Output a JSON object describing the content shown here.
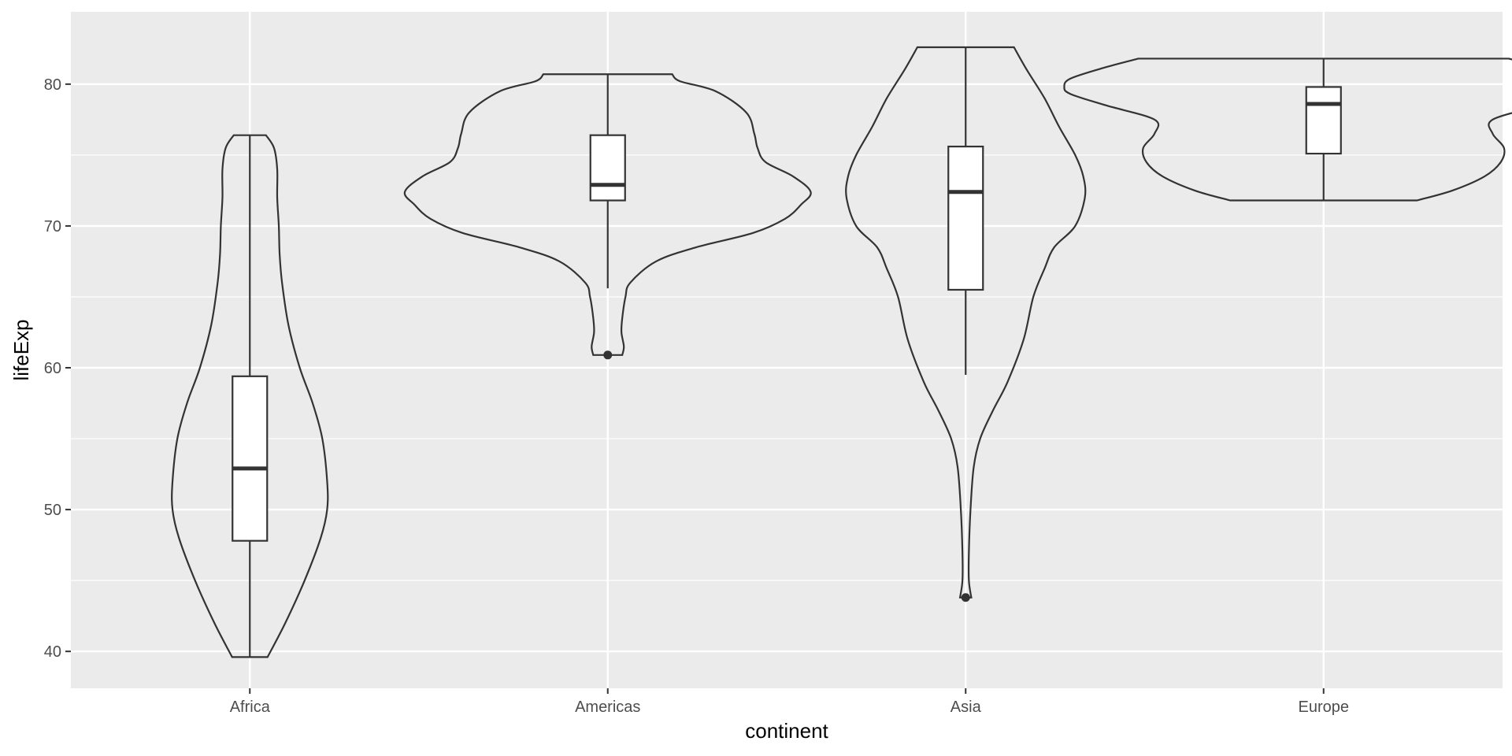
{
  "chart_data": {
    "type": "violin",
    "title": "",
    "xlabel": "continent",
    "ylabel": "lifeExp",
    "ylim": [
      37.4,
      85.1
    ],
    "yticks": [
      40,
      50,
      60,
      70,
      80
    ],
    "grid": true,
    "categories": [
      "Africa",
      "Americas",
      "Asia",
      "Europe"
    ],
    "series": [
      {
        "category": "Africa",
        "min": 39.6,
        "q1": 47.8,
        "median": 52.9,
        "q3": 59.4,
        "max": 76.4,
        "whisker_low": 39.6,
        "whisker_high": 76.4,
        "outliers": [],
        "density": [
          [
            39.6,
            0.11
          ],
          [
            42,
            0.22
          ],
          [
            45,
            0.34
          ],
          [
            48,
            0.44
          ],
          [
            50,
            0.48
          ],
          [
            52,
            0.48
          ],
          [
            55,
            0.45
          ],
          [
            57.5,
            0.39
          ],
          [
            60,
            0.31
          ],
          [
            63,
            0.24
          ],
          [
            66,
            0.2
          ],
          [
            68,
            0.185
          ],
          [
            70,
            0.18
          ],
          [
            72,
            0.17
          ],
          [
            74,
            0.17
          ],
          [
            75.5,
            0.15
          ],
          [
            76.4,
            0.1
          ]
        ]
      },
      {
        "category": "Americas",
        "min": 60.9,
        "q1": 71.8,
        "median": 72.9,
        "q3": 76.4,
        "max": 80.7,
        "whisker_low": 65.6,
        "whisker_high": 80.7,
        "outliers": [
          60.9
        ],
        "density": [
          [
            60.9,
            0.09
          ],
          [
            61.5,
            0.1
          ],
          [
            62.5,
            0.085
          ],
          [
            63.5,
            0.09
          ],
          [
            65,
            0.11
          ],
          [
            66,
            0.14
          ],
          [
            67.5,
            0.3
          ],
          [
            68.5,
            0.55
          ],
          [
            69.5,
            0.9
          ],
          [
            70.5,
            1.1
          ],
          [
            71.5,
            1.2
          ],
          [
            72.4,
            1.26
          ],
          [
            73.5,
            1.15
          ],
          [
            74.5,
            0.98
          ],
          [
            75.5,
            0.93
          ],
          [
            76.5,
            0.91
          ],
          [
            78,
            0.86
          ],
          [
            79.5,
            0.67
          ],
          [
            80.2,
            0.45
          ],
          [
            80.7,
            0.4
          ]
        ]
      },
      {
        "category": "Asia",
        "min": 43.8,
        "q1": 65.5,
        "median": 72.4,
        "q3": 75.6,
        "max": 82.6,
        "whisker_low": 59.5,
        "whisker_high": 82.6,
        "outliers": [
          43.8
        ],
        "density": [
          [
            43.8,
            0.035
          ],
          [
            45,
            0.02
          ],
          [
            47,
            0.02
          ],
          [
            50,
            0.03
          ],
          [
            53,
            0.05
          ],
          [
            55,
            0.09
          ],
          [
            57,
            0.17
          ],
          [
            59,
            0.26
          ],
          [
            62,
            0.36
          ],
          [
            65,
            0.42
          ],
          [
            67,
            0.49
          ],
          [
            68.5,
            0.55
          ],
          [
            70,
            0.68
          ],
          [
            72,
            0.74
          ],
          [
            73.5,
            0.73
          ],
          [
            75,
            0.68
          ],
          [
            77,
            0.58
          ],
          [
            79,
            0.49
          ],
          [
            81,
            0.38
          ],
          [
            82.6,
            0.3
          ]
        ]
      },
      {
        "category": "Europe",
        "min": 71.8,
        "q1": 75.1,
        "median": 78.6,
        "q3": 79.8,
        "max": 81.8,
        "whisker_low": 71.8,
        "whisker_high": 81.8,
        "outliers": [],
        "density": [
          [
            71.8,
            0.58
          ],
          [
            72.5,
            0.8
          ],
          [
            73.5,
            1.0
          ],
          [
            74.5,
            1.1
          ],
          [
            75.5,
            1.12
          ],
          [
            76.5,
            1.05
          ],
          [
            77.5,
            1.05
          ],
          [
            78.5,
            1.35
          ],
          [
            79.3,
            1.57
          ],
          [
            79.8,
            1.61
          ],
          [
            80.4,
            1.57
          ],
          [
            81.2,
            1.35
          ],
          [
            81.8,
            1.15
          ]
        ]
      }
    ]
  }
}
